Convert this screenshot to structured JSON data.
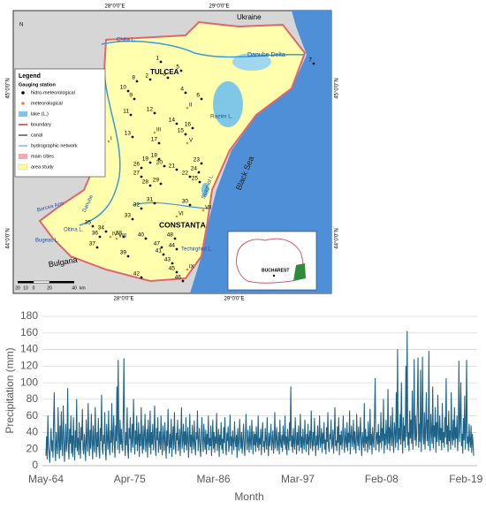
{
  "map": {
    "coords_top": [
      "28°0'0\"E",
      "29°0'0\"E"
    ],
    "coords_bottom": [
      "28°0'0\"E",
      "29°0'0\"E"
    ],
    "coords_left": [
      "45°0'0\"N",
      "44°0'0\"N"
    ],
    "coords_right": [
      "45°0'0\"N",
      "44°0'0\"N"
    ],
    "north": "N",
    "places": {
      "ukraine": "Ukraine",
      "delta": "Danube Delta",
      "tulcea": "TULCEA",
      "razim": "Razim L.",
      "sea": "Black Sea",
      "constanta": "CONSTANȚA",
      "bulgaria": "Bulgaria",
      "chilia": "Chilia L.",
      "siutghiol": "Siutghiol L.",
      "oltina": "Oltina L.",
      "techirghiol": "Techirghiol L.",
      "borcea": "Borcea Arm",
      "danube": "Danube",
      "bugeac": "Bugeac L."
    },
    "legend": {
      "title": "Legend",
      "subtitle": "Gauging station",
      "items": [
        "hidro-meteorological",
        "meteorological",
        "lake (L.)",
        "boundary",
        "canal",
        "hydrographic network",
        "main cities",
        "area study"
      ]
    },
    "inset": "BUCHAREST",
    "scale": [
      "20",
      "10",
      "0",
      "20",
      "40",
      "km"
    ],
    "stations": [
      "1",
      "2",
      "3",
      "4",
      "5",
      "6",
      "7",
      "8",
      "9",
      "10",
      "11",
      "12",
      "13",
      "14",
      "15",
      "16",
      "17",
      "18",
      "19",
      "20",
      "21",
      "22",
      "23",
      "24",
      "25",
      "26",
      "27",
      "28",
      "29",
      "30",
      "31",
      "32",
      "33",
      "34",
      "35",
      "36",
      "37",
      "38",
      "39",
      "40",
      "41",
      "42",
      "43",
      "44",
      "45",
      "46",
      "47",
      "48"
    ],
    "roman": [
      "I",
      "II",
      "III",
      "IV",
      "V",
      "VI",
      "VII",
      "VIII",
      "IX"
    ]
  },
  "chart_data": {
    "type": "line",
    "xlabel": "Month",
    "ylabel": "Precipitation (mm)",
    "color": "#1f6488",
    "grid": true,
    "ylim": [
      0,
      180
    ],
    "yticks": [
      0,
      20,
      40,
      60,
      80,
      100,
      120,
      140,
      160,
      180
    ],
    "categories": [
      "May-64",
      null,
      null,
      null,
      null,
      null,
      null,
      null,
      null,
      null,
      null,
      null,
      null,
      null,
      null,
      null,
      null,
      null,
      null,
      null,
      null,
      null,
      null,
      null,
      null,
      null,
      null,
      null,
      null,
      null,
      null,
      null,
      null,
      null,
      null,
      null,
      null,
      null,
      null,
      null,
      null,
      null,
      null,
      null,
      null,
      null,
      null,
      null,
      null,
      null,
      null,
      null,
      null,
      null,
      null,
      null,
      null,
      null,
      null,
      null,
      null,
      null,
      null,
      null,
      null,
      null,
      null,
      null,
      null,
      null,
      null,
      null,
      null,
      null,
      null,
      null,
      null,
      null,
      null,
      null,
      null,
      null,
      null,
      null,
      null,
      null,
      null,
      null,
      null,
      null,
      null,
      null,
      null,
      null,
      null,
      null,
      null,
      null,
      null,
      null,
      null,
      null,
      null,
      null,
      null,
      null,
      null,
      null,
      null,
      null,
      null,
      null,
      null,
      null,
      null,
      null,
      null,
      null,
      null,
      null,
      null,
      null,
      null,
      null,
      null,
      null,
      null,
      null,
      null,
      null,
      null,
      "Apr-75",
      null,
      null,
      null,
      null,
      null,
      null,
      null,
      null,
      null,
      null,
      null,
      null,
      null,
      null,
      null,
      null,
      null,
      null,
      null,
      null,
      null,
      null,
      null,
      null,
      null,
      null,
      null,
      null,
      null,
      null,
      null,
      null,
      null,
      null,
      null,
      null,
      null,
      null,
      null,
      null,
      null,
      null,
      null,
      null,
      null,
      null,
      null,
      null,
      null,
      null,
      null,
      null,
      null,
      null,
      null,
      null,
      null,
      null,
      null,
      null,
      null,
      null,
      null,
      null,
      null,
      null,
      null,
      null,
      null,
      null,
      null,
      null,
      null,
      null,
      null,
      null,
      null,
      null,
      null,
      null,
      null,
      null,
      null,
      null,
      null,
      null,
      null,
      null,
      null,
      null,
      null,
      null,
      null,
      null,
      null,
      null,
      null,
      null,
      null,
      null,
      null,
      null,
      null,
      null,
      null,
      null,
      null,
      null,
      null,
      null,
      null,
      null,
      null,
      null,
      null,
      null,
      null,
      null,
      null,
      null,
      null,
      null,
      null,
      null,
      null,
      null,
      null,
      null,
      null,
      null,
      "Mar-86",
      null,
      null,
      null,
      null,
      null,
      null,
      null,
      null,
      null,
      null,
      null,
      null,
      null,
      null,
      null,
      null,
      null,
      null,
      null,
      null,
      null,
      null,
      null,
      null,
      null,
      null,
      null,
      null,
      null,
      null,
      null,
      null,
      null,
      null,
      null,
      null,
      null,
      null,
      null,
      null,
      null,
      null,
      null,
      null,
      null,
      null,
      null,
      null,
      null,
      null,
      null,
      null,
      null,
      null,
      null,
      null,
      null,
      null,
      null,
      null,
      null,
      null,
      null,
      null,
      null,
      null,
      null,
      null,
      null,
      null,
      null,
      null,
      null,
      null,
      null,
      null,
      null,
      null,
      null,
      null,
      null,
      null,
      null,
      null,
      null,
      null,
      null,
      null,
      null,
      null,
      null,
      null,
      null,
      null,
      null,
      null,
      null,
      null,
      null,
      null,
      null,
      null,
      null,
      null,
      null,
      null,
      null,
      null,
      null,
      null,
      null,
      null,
      null,
      null,
      null,
      null,
      null,
      null,
      null,
      null,
      null,
      null,
      null,
      null,
      null,
      null,
      null,
      null,
      null,
      null,
      null,
      "Mar-97",
      null,
      null,
      null,
      null,
      null,
      null,
      null,
      null,
      null,
      null,
      null,
      null,
      null,
      null,
      null,
      null,
      null,
      null,
      null,
      null,
      null,
      null,
      null,
      null,
      null,
      null,
      null,
      null,
      null,
      null,
      null,
      null,
      null,
      null,
      null,
      null,
      null,
      null,
      null,
      null,
      null,
      null,
      null,
      null,
      null,
      null,
      null,
      null,
      null,
      null,
      null,
      null,
      null,
      null,
      null,
      null,
      null,
      null,
      null,
      null,
      null,
      null,
      null,
      null,
      null,
      null,
      null,
      null,
      null,
      null,
      null,
      null,
      null,
      null,
      null,
      null,
      null,
      null,
      null,
      null,
      null,
      null,
      null,
      null,
      null,
      null,
      null,
      null,
      null,
      null,
      null,
      null,
      null,
      null,
      null,
      null,
      null,
      null,
      null,
      null,
      null,
      null,
      null,
      null,
      null,
      null,
      null,
      null,
      null,
      null,
      null,
      null,
      null,
      null,
      null,
      null,
      null,
      null,
      null,
      null,
      null,
      null,
      null,
      null,
      null,
      null,
      null,
      null,
      null,
      null,
      "Feb-08",
      null,
      null,
      null,
      null,
      null,
      null,
      null,
      null,
      null,
      null,
      null,
      null,
      null,
      null,
      null,
      null,
      null,
      null,
      null,
      null,
      null,
      null,
      null,
      null,
      null,
      null,
      null,
      null,
      null,
      null,
      null,
      null,
      null,
      null,
      null,
      null,
      null,
      null,
      null,
      null,
      null,
      null,
      null,
      null,
      null,
      null,
      null,
      null,
      null,
      null,
      null,
      null,
      null,
      null,
      null,
      null,
      null,
      null,
      null,
      null,
      null,
      null,
      null,
      null,
      null,
      null,
      null,
      null,
      null,
      null,
      null,
      null,
      null,
      null,
      null,
      null,
      null,
      null,
      null,
      null,
      null,
      null,
      null,
      null,
      null,
      null,
      null,
      null,
      null,
      null,
      null,
      null,
      null,
      null,
      null,
      null,
      null,
      null,
      null,
      null,
      null,
      null,
      null,
      null,
      null,
      null,
      null,
      null,
      null,
      null,
      null,
      null,
      null,
      null,
      null,
      null,
      null,
      null,
      null,
      null,
      null,
      null,
      null,
      null,
      null,
      null,
      null,
      null,
      null,
      null,
      null,
      "Feb-19",
      null,
      null,
      null,
      null,
      null,
      null,
      null,
      null,
      null,
      null,
      null,
      null
    ],
    "values": [
      12,
      35,
      8,
      60,
      22,
      15,
      4,
      28,
      45,
      18,
      30,
      10,
      55,
      88,
      20,
      6,
      40,
      25,
      14,
      70,
      33,
      9,
      48,
      19,
      65,
      26,
      12,
      72,
      38,
      5,
      24,
      50,
      17,
      30,
      93,
      21,
      8,
      44,
      27,
      60,
      15,
      36,
      11,
      58,
      29,
      7,
      42,
      22,
      80,
      18,
      33,
      13,
      52,
      25,
      9,
      46,
      31,
      68,
      20,
      14,
      38,
      24,
      6,
      55,
      28,
      17,
      75,
      35,
      12,
      43,
      21,
      62,
      30,
      8,
      48,
      26,
      16,
      70,
      34,
      11,
      40,
      23,
      57,
      19,
      9,
      45,
      30,
      85,
      22,
      14,
      37,
      27,
      64,
      18,
      7,
      50,
      32,
      20,
      66,
      25,
      13,
      42,
      28,
      75,
      16,
      35,
      60,
      24,
      10,
      48,
      30,
      95,
      20,
      127,
      38,
      15,
      55,
      26,
      44,
      22,
      18,
      65,
      129,
      30,
      12,
      40,
      25,
      70,
      20,
      9,
      45,
      33,
      58,
      16,
      28,
      50,
      22,
      80,
      35,
      14,
      42,
      26,
      60,
      18,
      32,
      52,
      11,
      38,
      24,
      70,
      29,
      15,
      48,
      20,
      36,
      62,
      17,
      28,
      44,
      10,
      55,
      30,
      22,
      66,
      14,
      40,
      26,
      50,
      19,
      34,
      72,
      23,
      12,
      45,
      31,
      58,
      16,
      27,
      41,
      20,
      60,
      25,
      13,
      48,
      35,
      18,
      52,
      29,
      9,
      42,
      24,
      68,
      30,
      15,
      38,
      22,
      56,
      11,
      33,
      47,
      20,
      64,
      27,
      14,
      39,
      31,
      55,
      18,
      26,
      44,
      12,
      35,
      70,
      21,
      30,
      50,
      16,
      41,
      25,
      58,
      19,
      33,
      46,
      10,
      28,
      62,
      23,
      37,
      15,
      49,
      30,
      20,
      54,
      26,
      13,
      40,
      32,
      66,
      18,
      29,
      45,
      22,
      11,
      36,
      58,
      27,
      17,
      50,
      31,
      20,
      43,
      14,
      38,
      26,
      60,
      19,
      33,
      24,
      48,
      12,
      30,
      55,
      21,
      40,
      16,
      35,
      27,
      63,
      18,
      29,
      44,
      11,
      37,
      25,
      52,
      20,
      32,
      15,
      46,
      28,
      58,
      22,
      13,
      39,
      30,
      47,
      17,
      26,
      61,
      24,
      35,
      14,
      42,
      29,
      19,
      53,
      31,
      23,
      37,
      10,
      45,
      27,
      18,
      56,
      33,
      21,
      40,
      15,
      30,
      50,
      24,
      12,
      36,
      62,
      26,
      19,
      43,
      31,
      16,
      48,
      28,
      20,
      55,
      34,
      14,
      41,
      25,
      38,
      17,
      47,
      30,
      22,
      60,
      18,
      33,
      26,
      44,
      13,
      36,
      52,
      23,
      29,
      16,
      45,
      31,
      20,
      58,
      27,
      12,
      39,
      24,
      35,
      50,
      19,
      30,
      42,
      15,
      28,
      64,
      21,
      33,
      46,
      18,
      26,
      40,
      14,
      55,
      29,
      22,
      37,
      17,
      48,
      31,
      25,
      60,
      20,
      35,
      13,
      44,
      28,
      19,
      52,
      30,
      95,
      23,
      36,
      16,
      45,
      27,
      20,
      58,
      32,
      14,
      40,
      25,
      48,
      18,
      30,
      62,
      22,
      35,
      15,
      44,
      28,
      20,
      55,
      31,
      17,
      38,
      26,
      50,
      13,
      34,
      42,
      21,
      66,
      29,
      18,
      40,
      24,
      57,
      30,
      12,
      36,
      25,
      48,
      19,
      33,
      60,
      22,
      28,
      45,
      16,
      39,
      27,
      52,
      20,
      31,
      14,
      46,
      29,
      64,
      23,
      17,
      38,
      32,
      55,
      21,
      26,
      43,
      15,
      35,
      70,
      24,
      30,
      18,
      47,
      28,
      58,
      13,
      37,
      25,
      42,
      20,
      33,
      60,
      27,
      16,
      45,
      31,
      22,
      52,
      18,
      39,
      28,
      66,
      14,
      34,
      48,
      23,
      30,
      55,
      20,
      41,
      26,
      15,
      62,
      33,
      24,
      47,
      19,
      36,
      58,
      28,
      12,
      40,
      30,
      22,
      75,
      18,
      44,
      27,
      35,
      16,
      53,
      31,
      20,
      68,
      25,
      38,
      14,
      46,
      29,
      22,
      60,
      105,
      19,
      33,
      40,
      26,
      50,
      17,
      36,
      28,
      64,
      21,
      45,
      30,
      80,
      15,
      38,
      25,
      55,
      33,
      20,
      92,
      27,
      46,
      18,
      60,
      35,
      24,
      70,
      30,
      16,
      52,
      41,
      22,
      88,
      28,
      140,
      19,
      45,
      32,
      62,
      26,
      100,
      37,
      15,
      58,
      30,
      48,
      22,
      120,
      35,
      162,
      25,
      40,
      18,
      66,
      33,
      55,
      27,
      90,
      20,
      44,
      128,
      31,
      60,
      24,
      38,
      75,
      130,
      22,
      50,
      29,
      115,
      17,
      42,
      131,
      35,
      26,
      64,
      20,
      46,
      88,
      30,
      55,
      24,
      138,
      33,
      18,
      62,
      40,
      27,
      95,
      21,
      48,
      35,
      70,
      16,
      52,
      29,
      85,
      38,
      24,
      60,
      31,
      45,
      19,
      75,
      28,
      40,
      22,
      58,
      34,
      105,
      26,
      48,
      17,
      66,
      30,
      42,
      20,
      88,
      36,
      25,
      55,
      31,
      70,
      22,
      46,
      33,
      60,
      18,
      40,
      126,
      29,
      52,
      100,
      24,
      38,
      15,
      57,
      31,
      84,
      20,
      43,
      127,
      27,
      35,
      18,
      50,
      30,
      22,
      48,
      16,
      38,
      28,
      12
    ]
  }
}
